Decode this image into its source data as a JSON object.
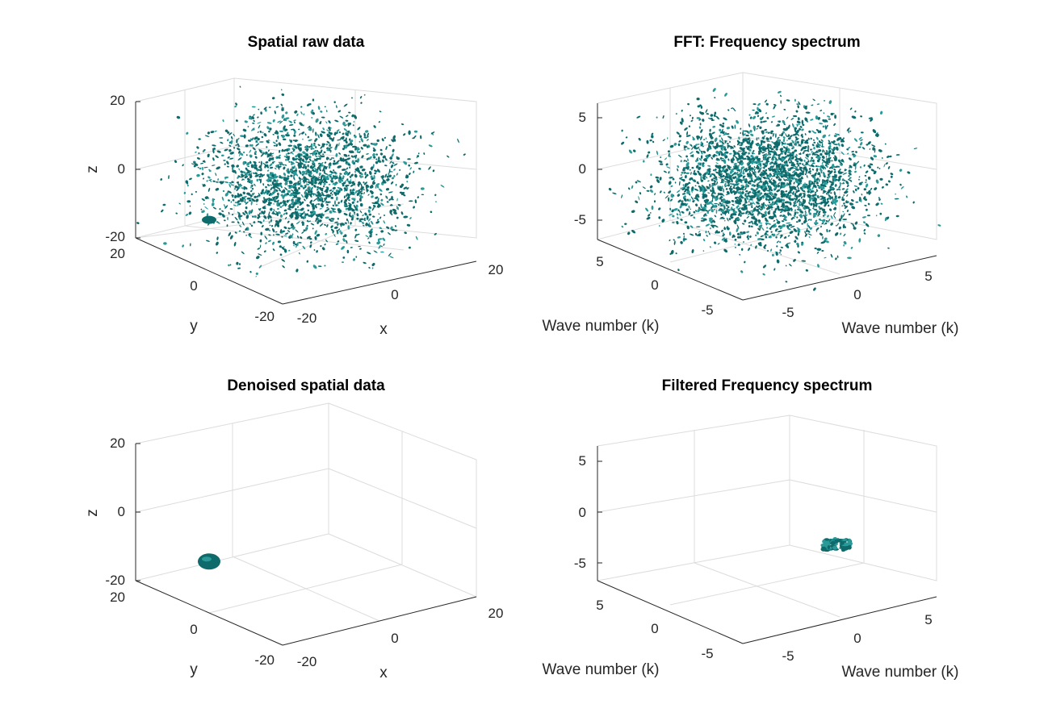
{
  "colors": {
    "surface": "#0f6b6b",
    "surface_light": "#2a9a98",
    "axis": "#262626",
    "grid": "#dcdcdc"
  },
  "chart_data": [
    {
      "type": "isosurface3d",
      "title": "Spatial raw data",
      "xlabel": "x",
      "ylabel": "y",
      "zlabel": "z",
      "xlim": [
        -20,
        20
      ],
      "ylim": [
        -20,
        20
      ],
      "zlim": [
        -20,
        20
      ],
      "xticks": [
        "-20",
        "0",
        "20"
      ],
      "yticks": [
        "-20",
        "0",
        "20"
      ],
      "zticks": [
        "-20",
        "0",
        "20"
      ],
      "grid": true,
      "content": "noise",
      "blob": {
        "x": -20,
        "y": 0,
        "z": -5
      }
    },
    {
      "type": "isosurface3d",
      "title": "FFT: Frequency spectrum",
      "xlabel": "Wave number (k)",
      "ylabel": "Wave number (k)",
      "zlabel": "",
      "xlim": [
        -8,
        8
      ],
      "ylim": [
        -8,
        8
      ],
      "zlim": [
        -7,
        7
      ],
      "xticks": [
        "-5",
        "0",
        "5"
      ],
      "yticks": [
        "-5",
        "0",
        "5"
      ],
      "zticks": [
        "-5",
        "0",
        "5"
      ],
      "grid": true,
      "content": "noise"
    },
    {
      "type": "isosurface3d",
      "title": "Denoised spatial data",
      "xlabel": "x",
      "ylabel": "y",
      "zlabel": "z",
      "xlim": [
        -20,
        20
      ],
      "ylim": [
        -20,
        20
      ],
      "zlim": [
        -20,
        20
      ],
      "xticks": [
        "-20",
        "0",
        "20"
      ],
      "yticks": [
        "-20",
        "0",
        "20"
      ],
      "zticks": [
        "-20",
        "0",
        "20"
      ],
      "grid": true,
      "content": "blob",
      "blob": {
        "x": -20,
        "y": 0,
        "z": -5
      }
    },
    {
      "type": "isosurface3d",
      "title": "Filtered Frequency spectrum",
      "xlabel": "Wave number (k)",
      "ylabel": "Wave number (k)",
      "zlabel": "",
      "xlim": [
        -8,
        8
      ],
      "ylim": [
        -8,
        8
      ],
      "zlim": [
        -7,
        7
      ],
      "xticks": [
        "-5",
        "0",
        "5"
      ],
      "yticks": [
        "-5",
        "0",
        "5"
      ],
      "zticks": [
        "-5",
        "0",
        "5"
      ],
      "grid": true,
      "content": "cluster",
      "blob": {
        "x": 2,
        "y": -5,
        "z": -1
      }
    }
  ]
}
